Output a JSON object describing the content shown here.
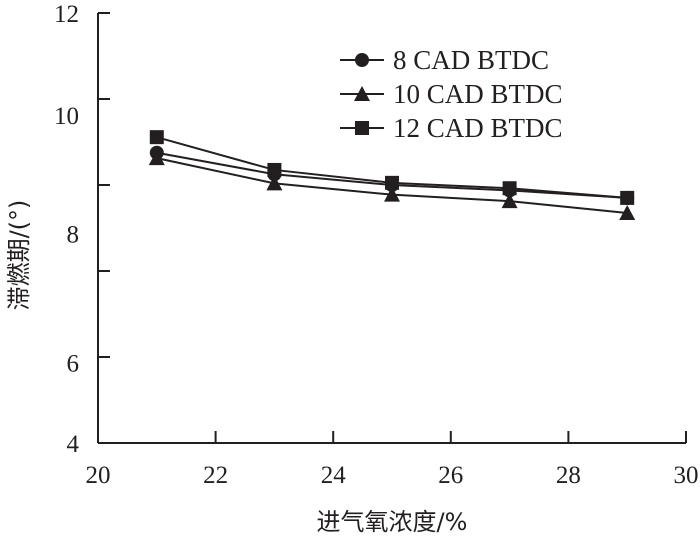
{
  "chart_data": {
    "type": "line",
    "title": "",
    "xlabel": "进气氧浓度/%",
    "ylabel": "滞燃期/(°)",
    "xlim": [
      20,
      30
    ],
    "ylim": [
      4,
      12
    ],
    "x_ticks": [
      20,
      22,
      24,
      26,
      28,
      30
    ],
    "x_tick_labels": [
      "20",
      "22",
      "24",
      "26",
      "28",
      "30"
    ],
    "y_ticks": [
      12,
      10.4,
      8.8,
      7.2,
      5.6,
      4
    ],
    "y_tick_labels": [
      {
        "value": 12,
        "label": "12"
      },
      {
        "value": 10.1,
        "label": "10"
      },
      {
        "value": 7.9,
        "label": "8"
      },
      {
        "value": 5.5,
        "label": "6"
      },
      {
        "value": 4,
        "label": "4"
      }
    ],
    "grid": false,
    "legend_position": "top-right",
    "x": [
      21,
      23,
      25,
      27,
      29
    ],
    "series": [
      {
        "name": "8 CAD BTDC",
        "marker": "circle",
        "values": [
          9.4,
          9.0,
          8.8,
          8.7,
          8.56
        ]
      },
      {
        "name": "10 CAD BTDC",
        "marker": "triangle",
        "values": [
          9.3,
          8.83,
          8.62,
          8.5,
          8.28
        ]
      },
      {
        "name": "12 CAD BTDC",
        "marker": "square",
        "values": [
          9.69,
          9.08,
          8.84,
          8.74,
          8.56
        ]
      }
    ],
    "colors": {
      "line": "#231f20"
    }
  }
}
